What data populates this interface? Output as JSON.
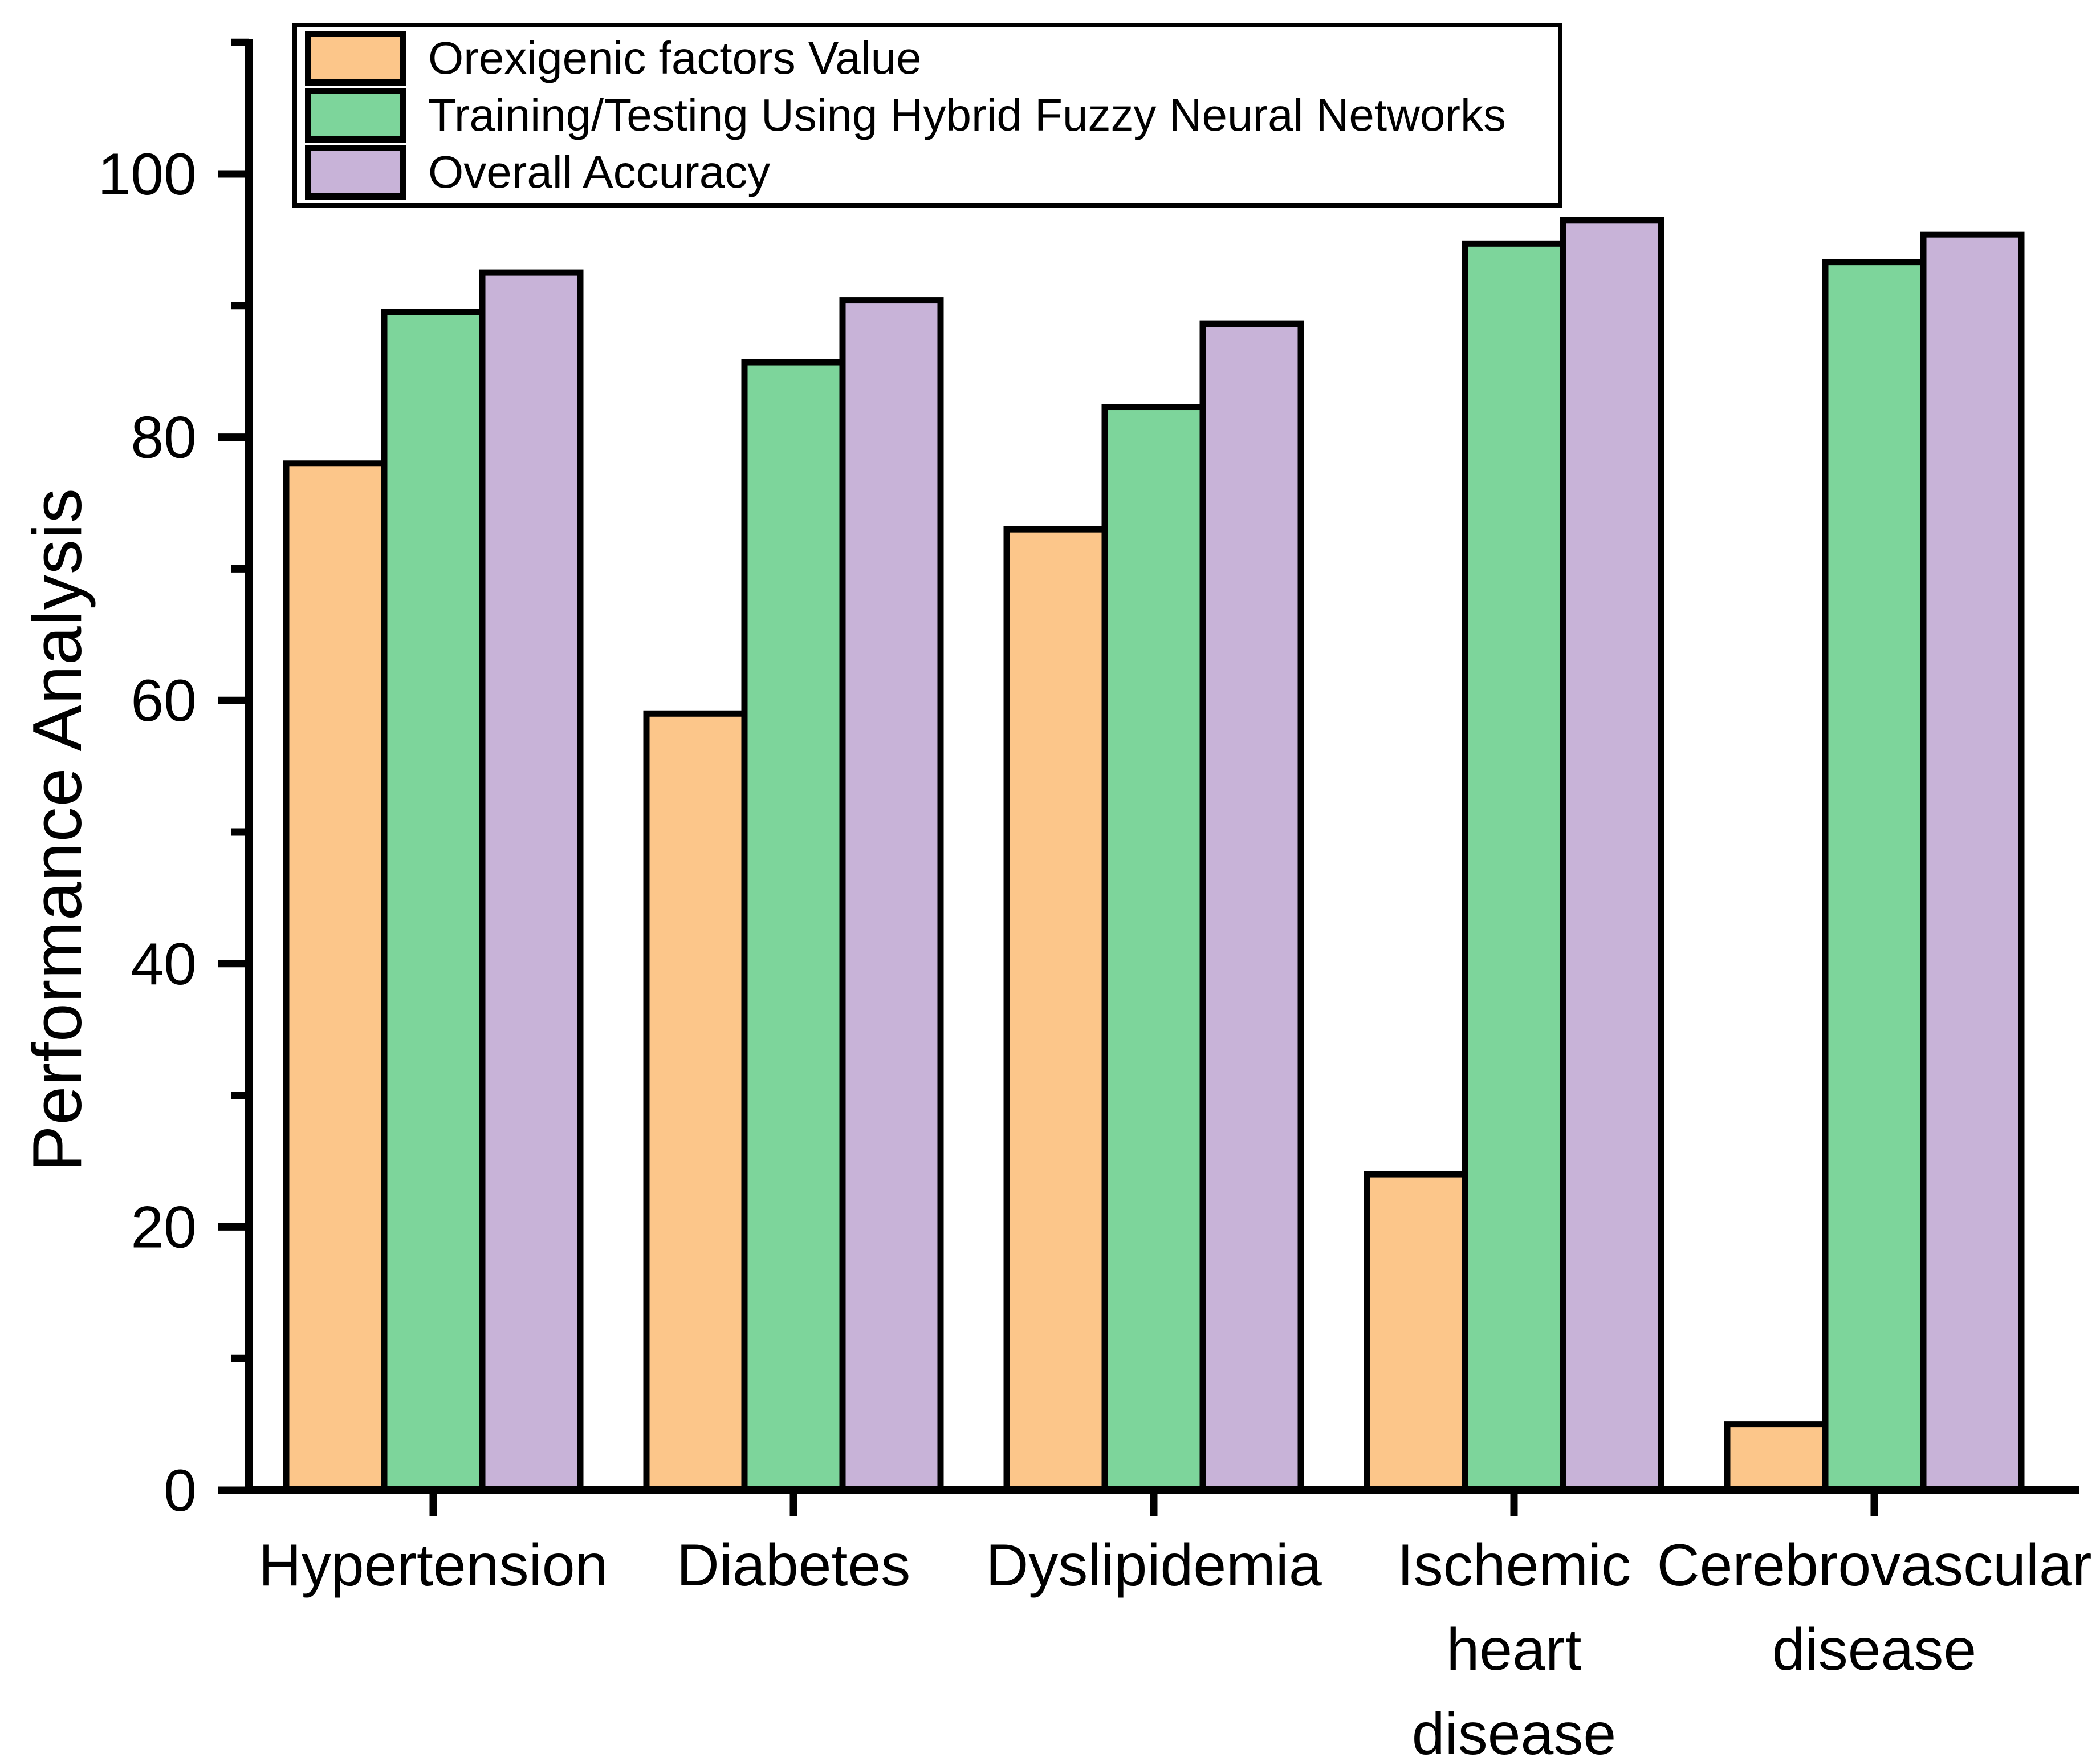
{
  "chart_data": {
    "type": "bar",
    "title": "",
    "ylabel": "Performance Analysis",
    "xlabel": "",
    "ylim": [
      0,
      110
    ],
    "yticks_major": [
      0,
      20,
      40,
      60,
      80,
      100
    ],
    "ytick_minor_step": 10,
    "grid": false,
    "legend_position": "top-left",
    "categories": [
      "Hypertension",
      "Diabetes",
      "Dyslipidemia",
      "Ischemic heart disease",
      "Cerebrovascular disease"
    ],
    "category_label_lines": [
      [
        "Hypertension"
      ],
      [
        "Diabetes"
      ],
      [
        "Dyslipidemia"
      ],
      [
        "Ischemic",
        "heart",
        "disease"
      ],
      [
        "Cerebrovascular",
        "disease"
      ]
    ],
    "series": [
      {
        "name": "Orexigenic factors Value",
        "color": "#FCC68A",
        "values": [
          78,
          59,
          73,
          24,
          5
        ]
      },
      {
        "name": "Training/Testing Using Hybrid Fuzzy Neural Networks",
        "color": "#7DD59B",
        "values": [
          89.5,
          85.7,
          82.3,
          94.7,
          93.3
        ]
      },
      {
        "name": "Overall Accuracy",
        "color": "#C8B3D8",
        "values": [
          92.5,
          90.4,
          88.6,
          96.5,
          95.4
        ]
      }
    ],
    "bar_border_color": "#000000",
    "axis_color": "#000000",
    "background_color": "#FFFFFF"
  }
}
